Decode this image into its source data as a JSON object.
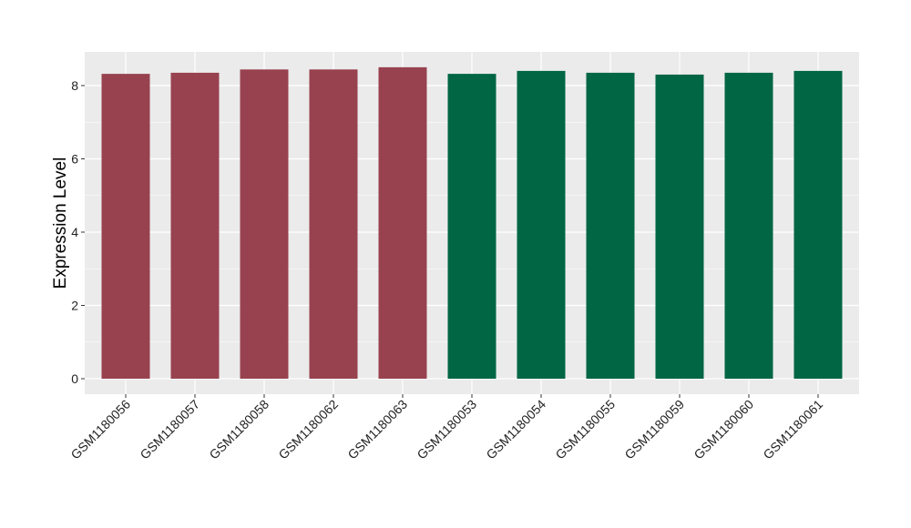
{
  "chart_data": {
    "type": "bar",
    "ylabel": "Expression Level",
    "xlabel": "",
    "categories": [
      "GSM1180056",
      "GSM1180057",
      "GSM1180058",
      "GSM1180062",
      "GSM1180063",
      "GSM1180053",
      "GSM1180054",
      "GSM1180055",
      "GSM1180059",
      "GSM1180060",
      "GSM1180061"
    ],
    "values": [
      8.32,
      8.35,
      8.44,
      8.44,
      8.5,
      8.32,
      8.4,
      8.35,
      8.3,
      8.35,
      8.4
    ],
    "group_index": [
      0,
      0,
      0,
      0,
      0,
      1,
      1,
      1,
      1,
      1,
      1
    ],
    "group_colors": [
      "#98424f",
      "#006644"
    ],
    "ylim": [
      0,
      8.9
    ],
    "yticks": [
      0,
      2,
      4,
      6,
      8
    ],
    "grid": true,
    "legend": "none",
    "panel_background": "#ebebeb"
  }
}
